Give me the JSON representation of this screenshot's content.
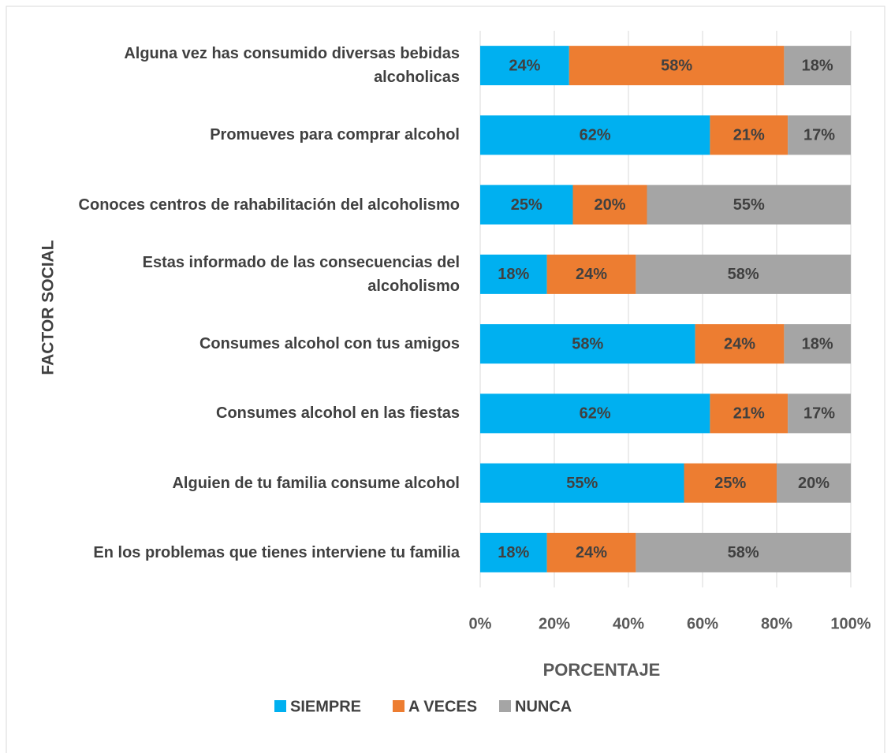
{
  "chart_data": {
    "type": "stacked-barh",
    "xlabel": "PORCENTAJE",
    "ylabel": "FACTOR SOCIAL",
    "categories": [
      "Alguna vez has consumido diversas bebidas alcoholicas",
      "Promueves para comprar alcohol",
      "Conoces centros de rahabilitación del alcoholismo",
      "Estas informado de las consecuencias del alcoholismo",
      "Consumes alcohol con tus amigos",
      "Consumes alcohol en las fiestas",
      "Alguien de tu familia consume alcohol",
      "En los problemas que tienes interviene tu familia"
    ],
    "series": [
      {
        "name": "SIEMPRE",
        "color": "#00b0f0",
        "values": [
          24,
          62,
          25,
          18,
          58,
          62,
          55,
          18
        ],
        "value_labels": [
          "24%",
          "62%",
          "25%",
          "18%",
          "58%",
          "62%",
          "55%",
          "18%"
        ]
      },
      {
        "name": "A VECES",
        "color": "#ed7d31",
        "values": [
          58,
          21,
          20,
          24,
          24,
          21,
          25,
          24
        ],
        "value_labels": [
          "58%",
          "21%",
          "20%",
          "24%",
          "24%",
          "21%",
          "25%",
          "24%"
        ]
      },
      {
        "name": "NUNCA",
        "color": "#a5a5a5",
        "values": [
          18,
          17,
          55,
          58,
          18,
          17,
          20,
          58
        ],
        "value_labels": [
          "18%",
          "17%",
          "55%",
          "58%",
          "18%",
          "17%",
          "20%",
          "58%"
        ]
      }
    ],
    "xlim": [
      0,
      100
    ],
    "xticks": [
      {
        "value": 0,
        "label": "0%"
      },
      {
        "value": 20,
        "label": "20%"
      },
      {
        "value": 40,
        "label": "40%"
      },
      {
        "value": 60,
        "label": "60%"
      },
      {
        "value": 80,
        "label": "80%"
      },
      {
        "value": 100,
        "label": "100%"
      }
    ],
    "grid": true,
    "legend": "bottom"
  }
}
